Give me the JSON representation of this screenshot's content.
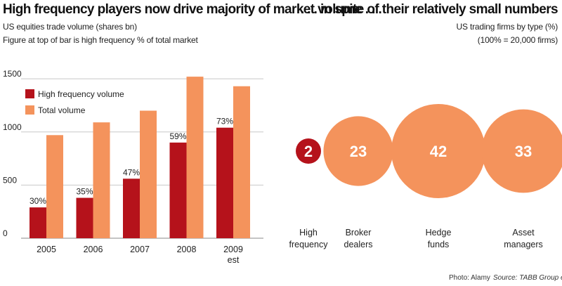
{
  "left_chart": {
    "title": "High frequency players now drive majority of market volume . . .",
    "subtitle": "US equities trade volume (shares bn)",
    "note": "Figure at top of bar is high frequency % of total market"
  },
  "right_chart": {
    "title": ". . . in spite of their relatively small numbers",
    "subtitle": "US trading firms by type (%)",
    "note": "(100% = 20,000 firms)"
  },
  "footer": {
    "photo": "Photo: Alamy",
    "source": "Source: TABB Group estimate"
  },
  "colors": {
    "hf": "#b5121b",
    "total": "#f4935c",
    "grid": "#c8c8c8"
  },
  "chart_data": [
    {
      "type": "bar",
      "categories": [
        "2005",
        "2006",
        "2007",
        "2008",
        "2009 est"
      ],
      "series": [
        {
          "name": "High frequency volume",
          "values": [
            290,
            380,
            560,
            900,
            1040
          ]
        },
        {
          "name": "Total volume",
          "values": [
            970,
            1090,
            1200,
            1520,
            1430
          ]
        }
      ],
      "bar_labels": [
        "30%",
        "35%",
        "47%",
        "59%",
        "73%"
      ],
      "yticks": [
        0,
        500,
        1000,
        1500
      ],
      "ylim": [
        0,
        1600
      ],
      "grid": true,
      "legend": "top-left"
    },
    {
      "type": "bubble",
      "categories": [
        "High frequency",
        "Broker dealers",
        "Hedge funds",
        "Asset managers"
      ],
      "values": [
        2,
        23,
        42,
        33
      ],
      "labels": [
        "2",
        "23",
        "42",
        "33"
      ]
    }
  ]
}
